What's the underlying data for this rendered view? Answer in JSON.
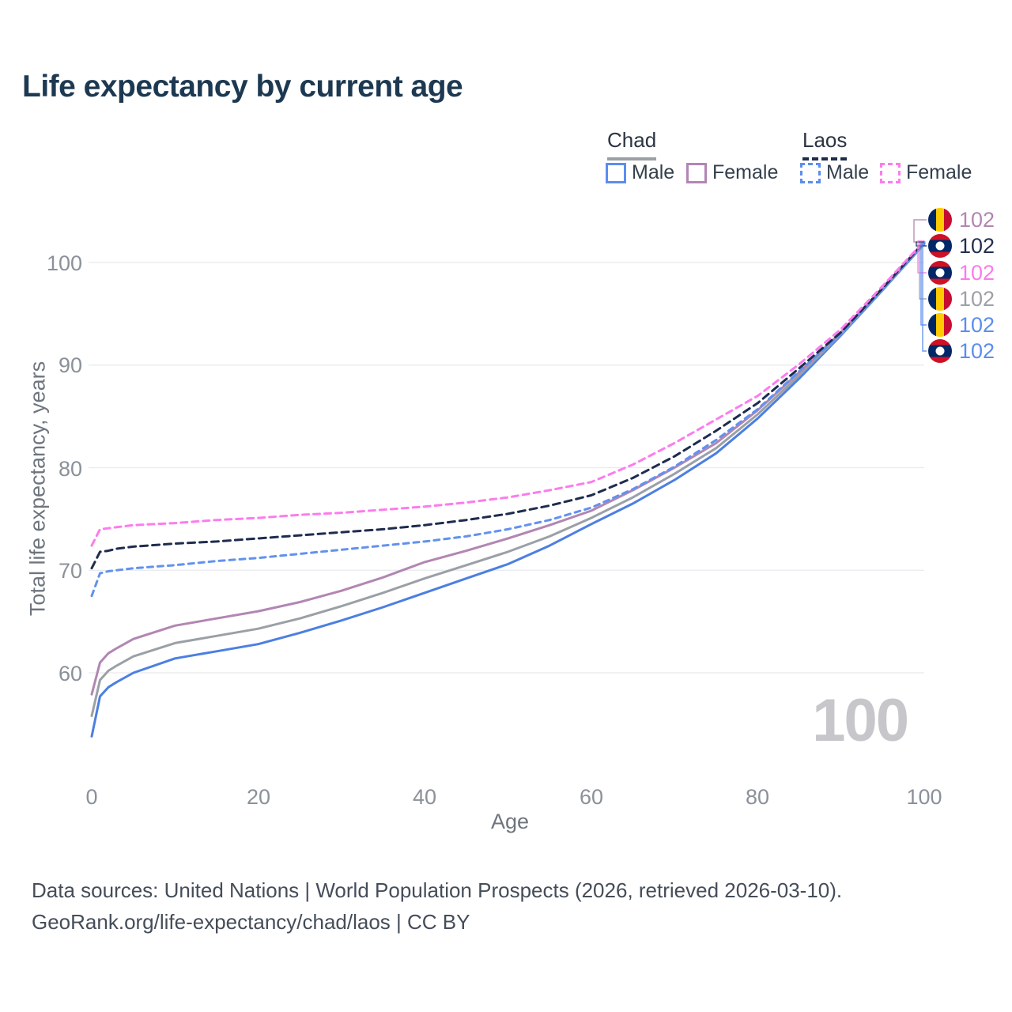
{
  "title": "Life expectancy by current age",
  "legend": {
    "groups": [
      {
        "label": "Chad",
        "style": "solid",
        "color": "#9aa0a6",
        "entries": [
          {
            "label": "Male",
            "color": "#5b8def"
          },
          {
            "label": "Female",
            "color": "#b286b2"
          }
        ]
      },
      {
        "label": "Laos",
        "style": "dashed",
        "color": "#1e2c4e",
        "entries": [
          {
            "label": "Male",
            "color": "#5b8def"
          },
          {
            "label": "Female",
            "color": "#fc7cee"
          }
        ]
      }
    ]
  },
  "axes": {
    "x_title": "Age",
    "y_title": "Total life expectancy, years",
    "x_ticks": [
      "0",
      "20",
      "40",
      "60",
      "80",
      "100"
    ],
    "y_ticks": [
      "60",
      "70",
      "80",
      "90",
      "100"
    ]
  },
  "watermark": "100",
  "footer": {
    "line1": "Data sources: United Nations | World Population Prospects (2026, retrieved 2026-03-10).",
    "line2": "GeoRank.org/life-expectancy/chad/laos | CC BY"
  },
  "chart_data": {
    "type": "line",
    "title": "Life expectancy by current age",
    "xlabel": "Age",
    "ylabel": "Total life expectancy, years",
    "x_range": [
      0,
      100
    ],
    "y_range": [
      60,
      100
    ],
    "grid": "horizontal",
    "y_grid_values": [
      60,
      70,
      80,
      90,
      100
    ],
    "x": [
      0,
      1,
      2,
      3,
      5,
      10,
      15,
      20,
      25,
      30,
      35,
      40,
      45,
      50,
      55,
      60,
      65,
      70,
      75,
      80,
      85,
      90,
      95,
      100
    ],
    "series": [
      {
        "id": "chad_male",
        "name": "Chad Male",
        "country": "Chad",
        "sex": "male",
        "color": "#4c7fe1",
        "dash": "",
        "values": [
          53.8,
          57.7,
          58.6,
          59.1,
          60.0,
          61.4,
          62.1,
          62.8,
          63.9,
          65.1,
          66.4,
          67.8,
          69.2,
          70.6,
          72.4,
          74.5,
          76.5,
          78.8,
          81.4,
          84.8,
          88.7,
          92.9,
          97.3,
          101.8
        ]
      },
      {
        "id": "chad_overall",
        "name": "Chad",
        "country": "Chad",
        "sex": "all",
        "color": "#9aa0a6",
        "dash": "",
        "values": [
          55.8,
          59.3,
          60.2,
          60.7,
          61.6,
          62.9,
          63.6,
          64.3,
          65.3,
          66.5,
          67.8,
          69.2,
          70.5,
          71.8,
          73.3,
          75.1,
          77.1,
          79.4,
          81.9,
          85.2,
          89.0,
          93.0,
          97.4,
          101.9
        ]
      },
      {
        "id": "chad_female",
        "name": "Chad Female",
        "country": "Chad",
        "sex": "female",
        "color": "#b286b2",
        "dash": "",
        "values": [
          57.9,
          61.0,
          61.9,
          62.4,
          63.3,
          64.6,
          65.3,
          66.0,
          66.9,
          68.0,
          69.3,
          70.8,
          71.9,
          73.1,
          74.4,
          75.8,
          77.8,
          80.0,
          82.4,
          85.6,
          89.3,
          93.2,
          97.5,
          102.0
        ]
      },
      {
        "id": "laos_male",
        "name": "Laos Male",
        "country": "Laos",
        "sex": "male",
        "color": "#6292ee",
        "dash": "7 6",
        "values": [
          67.5,
          69.7,
          69.9,
          70.0,
          70.2,
          70.5,
          70.9,
          71.2,
          71.6,
          72.0,
          72.4,
          72.8,
          73.3,
          74.0,
          74.9,
          76.1,
          77.9,
          80.1,
          82.7,
          85.7,
          89.4,
          93.0,
          97.3,
          101.9
        ]
      },
      {
        "id": "laos_overall",
        "name": "Laos",
        "country": "Laos",
        "sex": "all",
        "color": "#1e2c4e",
        "dash": "9 6",
        "values": [
          70.2,
          71.8,
          71.9,
          72.1,
          72.3,
          72.6,
          72.8,
          73.1,
          73.4,
          73.7,
          74.0,
          74.4,
          74.9,
          75.5,
          76.3,
          77.3,
          79.0,
          81.1,
          83.6,
          86.3,
          89.7,
          93.2,
          97.5,
          102.0
        ]
      },
      {
        "id": "laos_female",
        "name": "Laos Female",
        "country": "Laos",
        "sex": "female",
        "color": "#fc7cee",
        "dash": "8 6",
        "values": [
          72.4,
          74.0,
          74.1,
          74.2,
          74.4,
          74.6,
          74.9,
          75.1,
          75.4,
          75.6,
          75.9,
          76.2,
          76.6,
          77.1,
          77.8,
          78.6,
          80.3,
          82.4,
          84.7,
          87.0,
          90.1,
          93.5,
          97.7,
          102.1
        ]
      }
    ],
    "end_labels": [
      {
        "series": "chad_female",
        "flag": "chad",
        "value": "102",
        "color": "#b286b2"
      },
      {
        "series": "laos_overall",
        "flag": "laos",
        "value": "102",
        "color": "#22304f"
      },
      {
        "series": "laos_female",
        "flag": "laos",
        "value": "102",
        "color": "#fb7bec"
      },
      {
        "series": "chad_overall",
        "flag": "chad",
        "value": "102",
        "color": "#9ca1a8"
      },
      {
        "series": "chad_male",
        "flag": "chad",
        "value": "102",
        "color": "#5b8def"
      },
      {
        "series": "laos_male",
        "flag": "laos",
        "value": "102",
        "color": "#5b8def"
      }
    ]
  }
}
